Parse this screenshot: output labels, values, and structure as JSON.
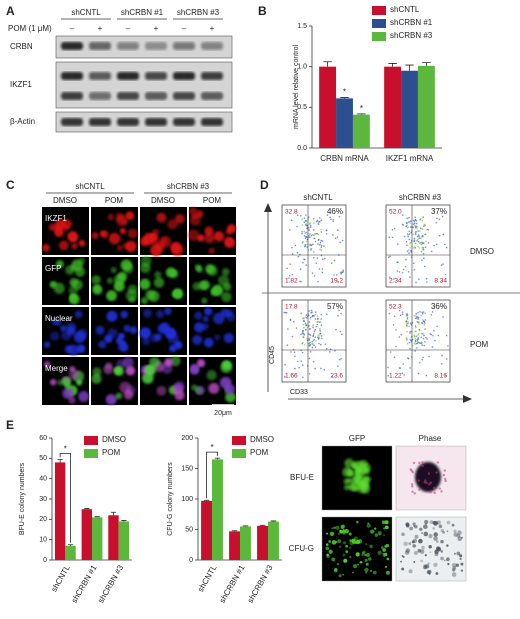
{
  "panels": {
    "A": {
      "label": "A",
      "columns": [
        "shCNTL",
        "shCRBN #1",
        "shCRBN #3"
      ],
      "treatment": "POM (1 μM)",
      "lanes": [
        "–",
        "+",
        "–",
        "+",
        "–",
        "+"
      ],
      "rows": [
        "CRBN",
        "IKZF1",
        "β-Actin"
      ]
    },
    "C": {
      "label": "C",
      "groups": [
        "shCNTL",
        "shCRBN #3"
      ],
      "columns": [
        "DMSO",
        "POM",
        "DMSO",
        "POM"
      ],
      "rows": [
        "IKZF1",
        "GFP",
        "Nuclear",
        "Merge"
      ],
      "scale_bar": "20μm"
    },
    "D": {
      "label": "D",
      "columns": [
        "shCNTL",
        "shCRBN #3"
      ],
      "rows": [
        "DMSO",
        "POM"
      ],
      "plots": [
        {
          "top_left": "32.8",
          "top_right": "46%",
          "bottom_left": "1.82",
          "bottom_right": "19.2"
        },
        {
          "top_left": "52.0",
          "top_right": "37%",
          "bottom_left": "2.34",
          "bottom_right": "8.34"
        },
        {
          "top_left": "17.8",
          "top_right": "57%",
          "bottom_left": "1.66",
          "bottom_right": "23.6"
        },
        {
          "top_left": "52.3",
          "top_right": "36%",
          "bottom_left": "1.22",
          "bottom_right": "8.16"
        }
      ],
      "y_axis": "CD45",
      "x_axis": "CD33"
    },
    "E": {
      "label": "E",
      "columns": [
        "GFP",
        "Phase"
      ],
      "rows": [
        "BFU-E",
        "CFU-G"
      ]
    }
  },
  "chart_data": [
    {
      "type": "bar",
      "panel": "B",
      "y_label": "mRNA level relative control",
      "categories": [
        "CRBN mRNA",
        "IKZF1 mRNA"
      ],
      "series": [
        {
          "name": "shCNTL",
          "color": "#c8102e",
          "values": [
            1.0,
            1.0
          ],
          "errors": [
            0.06,
            0.04
          ]
        },
        {
          "name": "shCRBN #1",
          "color": "#2e4f8f",
          "values": [
            0.61,
            0.95
          ],
          "errors": [
            0.01,
            0.07
          ]
        },
        {
          "name": "shCRBN #3",
          "color": "#5cb83c",
          "values": [
            0.41,
            1.01
          ],
          "errors": [
            0.01,
            0.04
          ]
        }
      ],
      "ylim": [
        0,
        1.5
      ],
      "yticks": [
        {
          "value": 0,
          "label": "0.0"
        },
        {
          "value": 0.5,
          "label": "0.5"
        },
        {
          "value": 1,
          "label": "1.0"
        },
        {
          "value": 1.5,
          "label": "1.5"
        }
      ],
      "annotations": [
        "*",
        "*"
      ]
    },
    {
      "type": "bar",
      "y_label": "BFU-E colony numbers",
      "categories": [
        "shCNTL",
        "shCRBN #1",
        "shCRBN #3"
      ],
      "series": [
        {
          "name": "DMSO",
          "color": "#c8102e",
          "values": [
            48,
            25,
            22
          ],
          "errors": [
            1.5,
            0.3,
            1.5
          ]
        },
        {
          "name": "POM",
          "color": "#5cb83c",
          "values": [
            7,
            21,
            19
          ],
          "errors": [
            0.5,
            0.3,
            0.4
          ]
        }
      ],
      "ylim": [
        0,
        60
      ],
      "yticks": [
        0,
        10,
        20,
        30,
        40,
        50,
        60
      ],
      "annotations": [
        "*"
      ]
    },
    {
      "type": "bar",
      "y_label": "CFU-G colony numbers",
      "categories": [
        "shCNTL",
        "shCRBN #1",
        "shCRBN #3"
      ],
      "series": [
        {
          "name": "DMSO",
          "color": "#c8102e",
          "values": [
            97,
            47,
            56
          ],
          "errors": [
            1,
            1,
            1
          ]
        },
        {
          "name": "POM",
          "color": "#5cb83c",
          "values": [
            165,
            55,
            63
          ],
          "errors": [
            2,
            1,
            1
          ]
        }
      ],
      "ylim": [
        0,
        200
      ],
      "yticks": [
        0,
        50,
        100,
        150,
        200
      ],
      "annotations": [
        "*"
      ]
    }
  ]
}
